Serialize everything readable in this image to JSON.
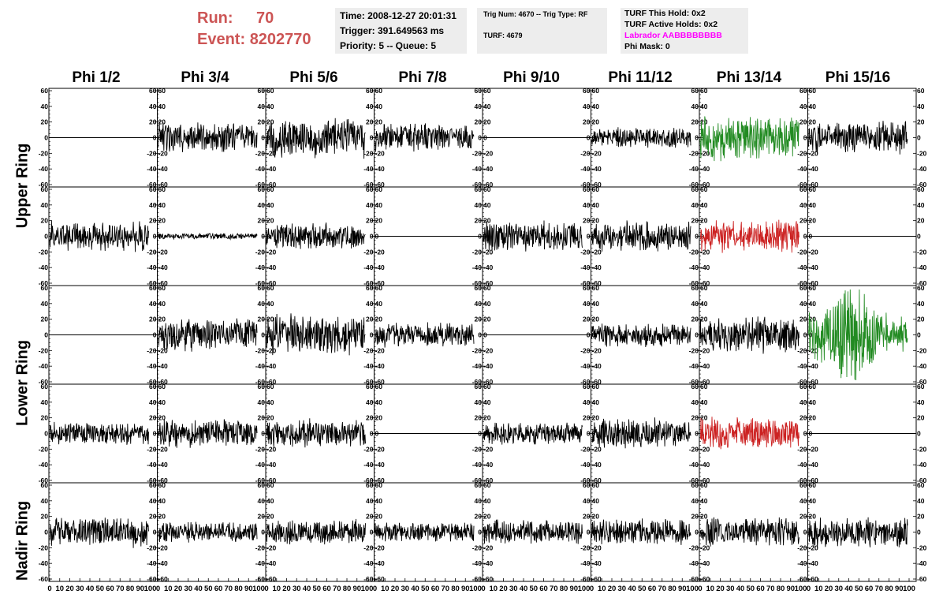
{
  "run_label": "Run:",
  "run_value": "70",
  "event_label": "Event:",
  "event_value": "8202770",
  "info1": {
    "time": "Time: 2008-12-27 20:01:31",
    "trigger": "Trigger: 391.649563 ms",
    "priority": "Priority: 5 -- Queue: 5"
  },
  "info2": {
    "trig": "Trig Num: 4670 -- Trig Type: RF",
    "turf": "TURF: 4679"
  },
  "info3": {
    "this_hold": "TURF This Hold: 0x2",
    "active_holds": "TURF Active Holds: 0x2",
    "labrador": "Labrador AABBBBBBBB",
    "phi_mask": "Phi Mask: 0"
  },
  "columns": [
    "Phi 1/2",
    "Phi 3/4",
    "Phi 5/6",
    "Phi 7/8",
    "Phi 9/10",
    "Phi 11/12",
    "Phi 13/14",
    "Phi 15/16"
  ],
  "ring_labels": {
    "upper": "Upper Ring",
    "lower": "Lower Ring",
    "nadir": "Nadir Ring"
  },
  "y_ticks": [
    "60",
    "40",
    "20",
    "0",
    "-20",
    "-40",
    "-60"
  ],
  "x_ticks": [
    "0",
    "10",
    "20",
    "30",
    "40",
    "50",
    "60",
    "70",
    "80",
    "90",
    "100"
  ],
  "colors": {
    "run": "#cc5555",
    "labrador": "#ff00ff",
    "green": "#228b22",
    "red": "#cc2222",
    "trace": "#000000"
  },
  "chart_data": {
    "type": "line",
    "ylim": [
      -60,
      60
    ],
    "xlim": [
      0,
      100
    ],
    "rows": 5,
    "cols": 8,
    "panels": [
      {
        "row": 0,
        "col": 0,
        "color": "black",
        "amplitude": 0
      },
      {
        "row": 0,
        "col": 1,
        "color": "black",
        "amplitude": 15
      },
      {
        "row": 0,
        "col": 2,
        "color": "black",
        "amplitude": 20
      },
      {
        "row": 0,
        "col": 3,
        "color": "black",
        "amplitude": 14
      },
      {
        "row": 0,
        "col": 4,
        "color": "black",
        "amplitude": 0
      },
      {
        "row": 0,
        "col": 5,
        "color": "black",
        "amplitude": 10
      },
      {
        "row": 0,
        "col": 6,
        "color": "green",
        "amplitude": 22
      },
      {
        "row": 0,
        "col": 7,
        "color": "black",
        "amplitude": 16
      },
      {
        "row": 1,
        "col": 0,
        "color": "black",
        "amplitude": 15
      },
      {
        "row": 1,
        "col": 1,
        "color": "black",
        "amplitude": 3
      },
      {
        "row": 1,
        "col": 2,
        "color": "black",
        "amplitude": 13
      },
      {
        "row": 1,
        "col": 3,
        "color": "black",
        "amplitude": 0
      },
      {
        "row": 1,
        "col": 4,
        "color": "black",
        "amplitude": 15
      },
      {
        "row": 1,
        "col": 5,
        "color": "black",
        "amplitude": 15
      },
      {
        "row": 1,
        "col": 6,
        "color": "red",
        "amplitude": 16
      },
      {
        "row": 1,
        "col": 7,
        "color": "black",
        "amplitude": 0
      },
      {
        "row": 2,
        "col": 0,
        "color": "black",
        "amplitude": 0
      },
      {
        "row": 2,
        "col": 1,
        "color": "black",
        "amplitude": 16
      },
      {
        "row": 2,
        "col": 2,
        "color": "black",
        "amplitude": 20
      },
      {
        "row": 2,
        "col": 3,
        "color": "black",
        "amplitude": 12
      },
      {
        "row": 2,
        "col": 4,
        "color": "black",
        "amplitude": 0
      },
      {
        "row": 2,
        "col": 5,
        "color": "black",
        "amplitude": 12
      },
      {
        "row": 2,
        "col": 6,
        "color": "black",
        "amplitude": 18
      },
      {
        "row": 2,
        "col": 7,
        "color": "green",
        "amplitude": 30
      },
      {
        "row": 3,
        "col": 0,
        "color": "black",
        "amplitude": 11
      },
      {
        "row": 3,
        "col": 1,
        "color": "black",
        "amplitude": 14
      },
      {
        "row": 3,
        "col": 2,
        "color": "black",
        "amplitude": 14
      },
      {
        "row": 3,
        "col": 3,
        "color": "black",
        "amplitude": 0
      },
      {
        "row": 3,
        "col": 4,
        "color": "black",
        "amplitude": 11
      },
      {
        "row": 3,
        "col": 5,
        "color": "black",
        "amplitude": 15
      },
      {
        "row": 3,
        "col": 6,
        "color": "red",
        "amplitude": 17
      },
      {
        "row": 3,
        "col": 7,
        "color": "black",
        "amplitude": 0
      },
      {
        "row": 4,
        "col": 0,
        "color": "black",
        "amplitude": 15
      },
      {
        "row": 4,
        "col": 1,
        "color": "black",
        "amplitude": 10
      },
      {
        "row": 4,
        "col": 2,
        "color": "black",
        "amplitude": 12
      },
      {
        "row": 4,
        "col": 3,
        "color": "black",
        "amplitude": 10
      },
      {
        "row": 4,
        "col": 4,
        "color": "black",
        "amplitude": 12
      },
      {
        "row": 4,
        "col": 5,
        "color": "black",
        "amplitude": 13
      },
      {
        "row": 4,
        "col": 6,
        "color": "black",
        "amplitude": 14
      },
      {
        "row": 4,
        "col": 7,
        "color": "black",
        "amplitude": 15
      }
    ]
  }
}
